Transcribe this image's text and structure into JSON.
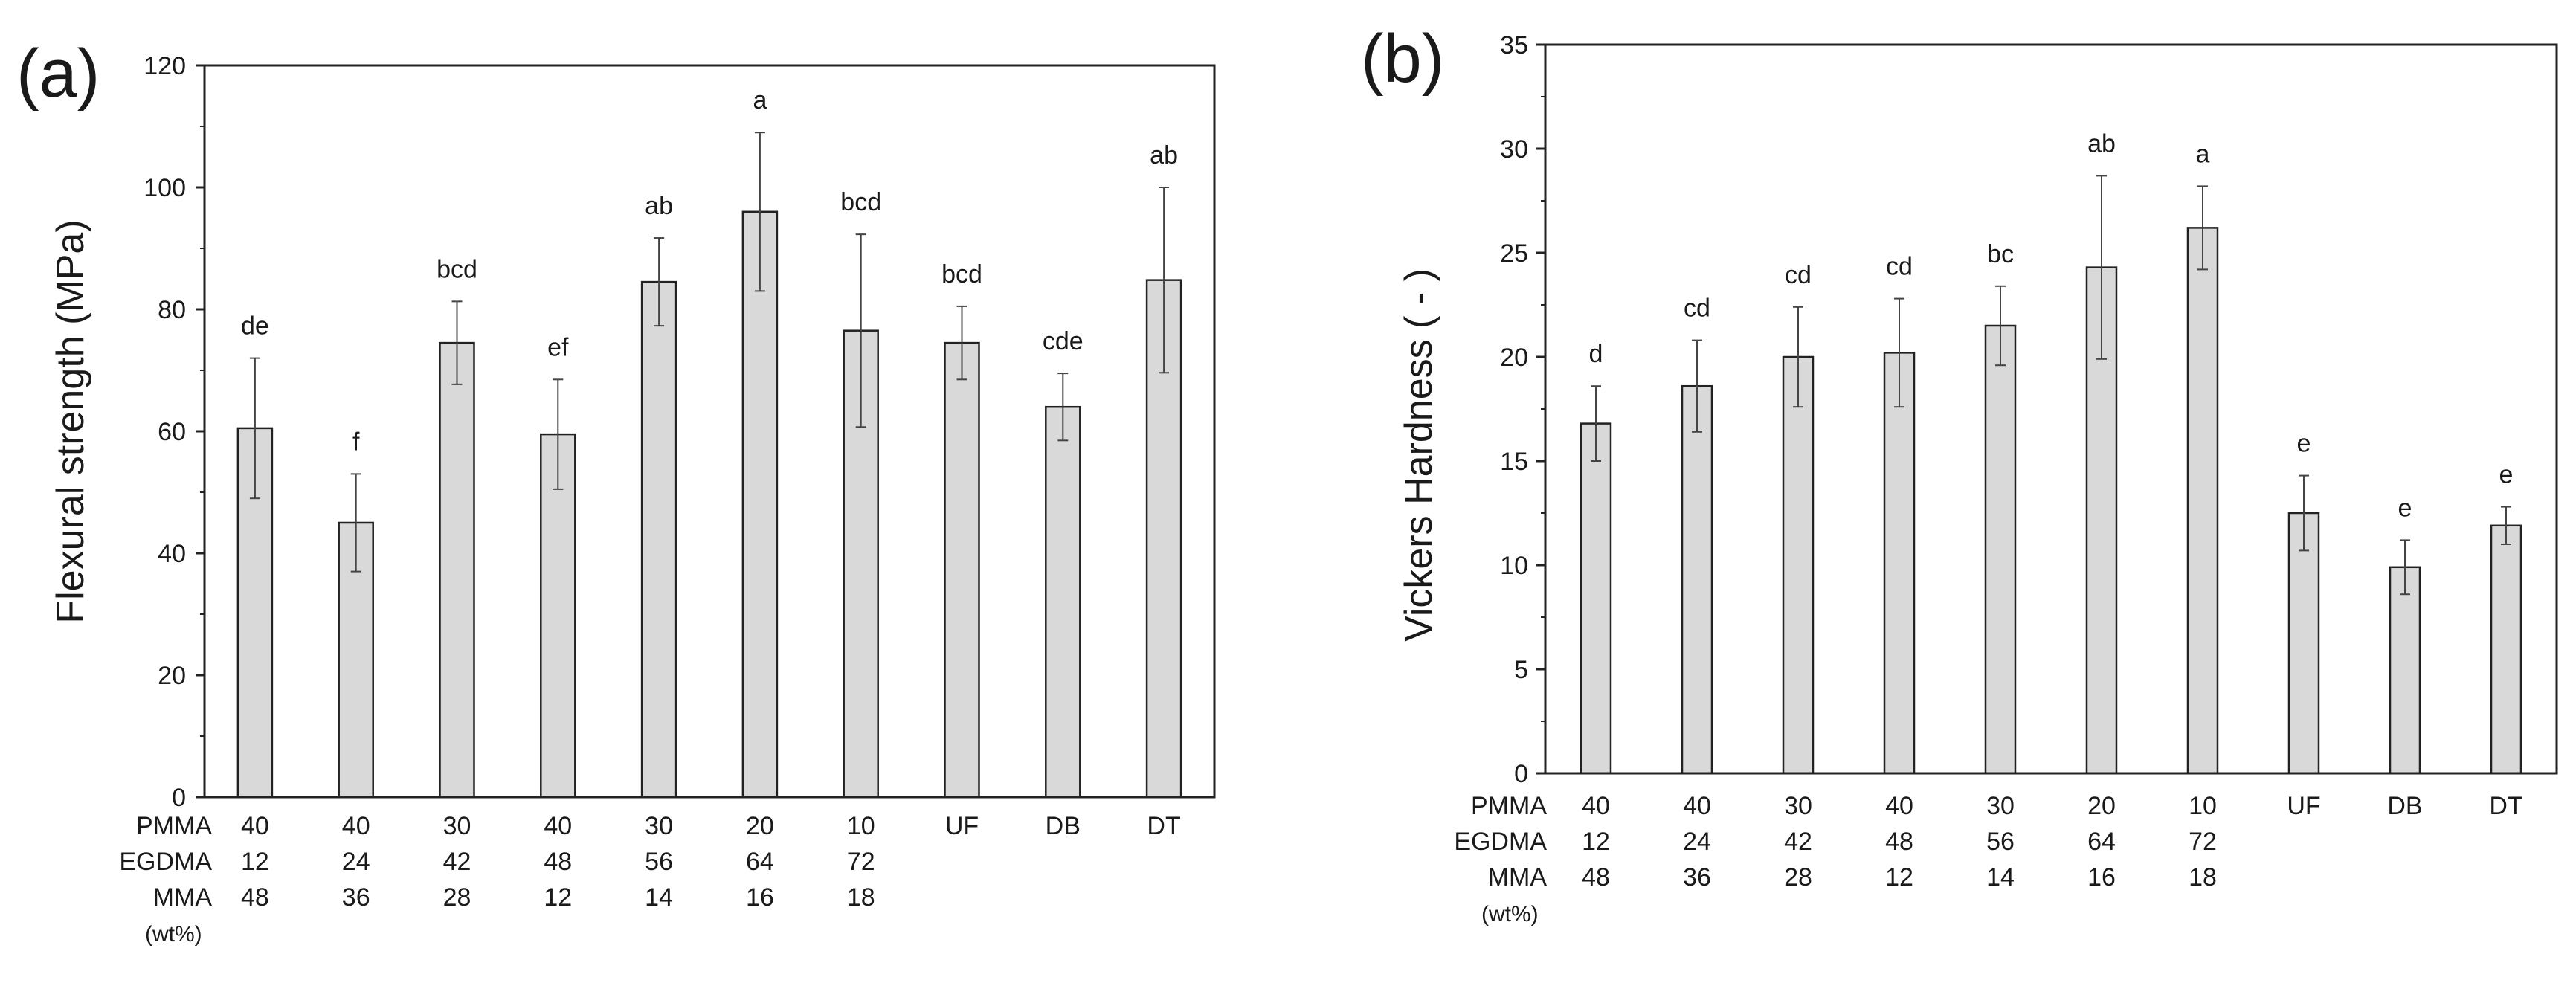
{
  "chart_data": [
    {
      "type": "bar",
      "panel_label": "(a)",
      "title": "",
      "xlabel": "",
      "ylabel": "Flexural strength (MPa)",
      "ylim": [
        0,
        120
      ],
      "y_ticks": [
        "0",
        "20",
        "40",
        "60",
        "80",
        "100",
        "120"
      ],
      "y_tick_values": [
        0,
        20,
        40,
        60,
        80,
        100,
        120
      ],
      "grid": false,
      "bar_color": "#d9d9d9",
      "categories": [
        "40/12/48",
        "40/24/36",
        "30/42/28",
        "40/48/12",
        "30/56/14",
        "20/64/16",
        "10/72/18",
        "UF",
        "DB",
        "DT"
      ],
      "values": [
        60.5,
        45.0,
        74.5,
        59.5,
        84.5,
        96.0,
        76.5,
        74.5,
        64.0,
        84.8
      ],
      "errors": [
        11.5,
        8.0,
        6.8,
        9.0,
        7.2,
        13.0,
        15.8,
        6.0,
        5.5,
        15.2
      ],
      "significance": [
        "de",
        "f",
        "bcd",
        "ef",
        "ab",
        "a",
        "bcd",
        "bcd",
        "cde",
        "ab"
      ],
      "composition": {
        "row_labels": [
          "PMMA",
          "EGDMA",
          "MMA"
        ],
        "unit_label": "(wt%)",
        "PMMA": [
          "40",
          "40",
          "30",
          "40",
          "30",
          "20",
          "10",
          "UF",
          "DB",
          "DT"
        ],
        "EGDMA": [
          "12",
          "24",
          "42",
          "48",
          "56",
          "64",
          "72",
          "",
          "",
          ""
        ],
        "MMA": [
          "48",
          "36",
          "28",
          "12",
          "14",
          "16",
          "18",
          "",
          "",
          ""
        ]
      }
    },
    {
      "type": "bar",
      "panel_label": "(b)",
      "title": "",
      "xlabel": "",
      "ylabel": "Vickers Hardness ( - )",
      "ylim": [
        0,
        35
      ],
      "y_ticks": [
        "0",
        "5",
        "10",
        "15",
        "20",
        "25",
        "30",
        "35"
      ],
      "y_tick_values": [
        0,
        5,
        10,
        15,
        20,
        25,
        30,
        35
      ],
      "grid": false,
      "bar_color": "#d9d9d9",
      "categories": [
        "40/12/48",
        "40/24/36",
        "30/42/28",
        "40/48/12",
        "30/56/14",
        "20/64/16",
        "10/72/18",
        "UF",
        "DB",
        "DT"
      ],
      "values": [
        16.8,
        18.6,
        20.0,
        20.2,
        21.5,
        24.3,
        26.2,
        12.5,
        9.9,
        11.9
      ],
      "errors": [
        1.8,
        2.2,
        2.4,
        2.6,
        1.9,
        4.4,
        2.0,
        1.8,
        1.3,
        0.9
      ],
      "significance": [
        "d",
        "cd",
        "cd",
        "cd",
        "bc",
        "ab",
        "a",
        "e",
        "e",
        "e"
      ],
      "composition": {
        "row_labels": [
          "PMMA",
          "EGDMA",
          "MMA"
        ],
        "unit_label": "(wt%)",
        "PMMA": [
          "40",
          "40",
          "30",
          "40",
          "30",
          "20",
          "10",
          "UF",
          "DB",
          "DT"
        ],
        "EGDMA": [
          "12",
          "24",
          "42",
          "48",
          "56",
          "64",
          "72",
          "",
          "",
          ""
        ],
        "MMA": [
          "48",
          "36",
          "28",
          "12",
          "14",
          "16",
          "18",
          "",
          "",
          ""
        ]
      }
    }
  ]
}
